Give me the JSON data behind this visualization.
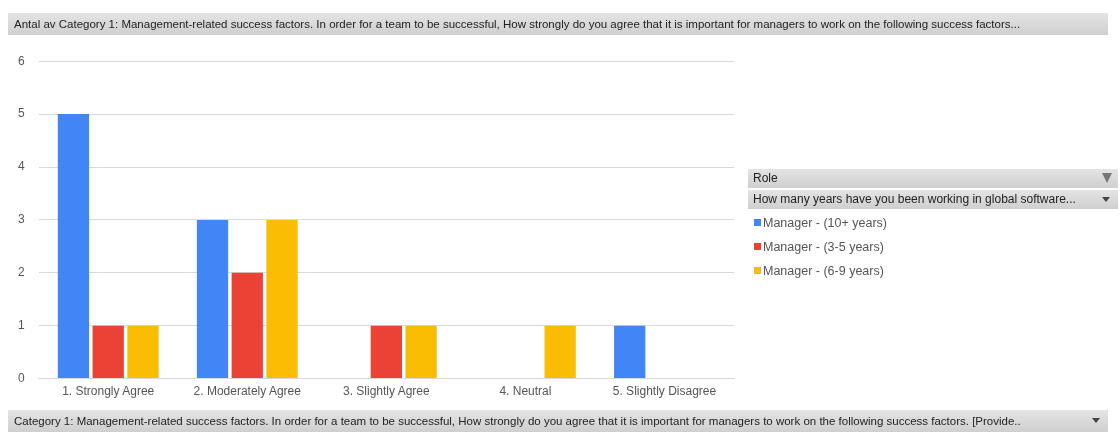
{
  "chart_data": {
    "type": "bar",
    "title": "Antal av Category 1: Management-related success factors. In order for a team to be successful, How strongly do you agree that it is important for managers to work on the following success factors...",
    "xlabel": "Category 1: Management-related success factors. In order for a team to be successful, How strongly do you agree that it is important for managers to work on the following success factors.  [Provide..",
    "legend_title": "Role",
    "annotations": [
      "How many years have you been working in global software..."
    ],
    "categories": [
      "1. Strongly Agree",
      "2. Moderately Agree",
      "3. Slightly Agree",
      "4. Neutral",
      "5. Slightly Disagree"
    ],
    "series": [
      {
        "name": "Manager - (10+ years)",
        "color": "#4285f4",
        "values": [
          5,
          3,
          null,
          null,
          1
        ]
      },
      {
        "name": "Manager - (3-5 years)",
        "color": "#ea4335",
        "values": [
          1,
          2,
          1,
          null,
          null
        ]
      },
      {
        "name": "Manager - (6-9 years)",
        "color": "#fbbc04",
        "values": [
          1,
          3,
          1,
          1,
          null
        ]
      }
    ],
    "ylim": [
      0,
      6
    ],
    "yticks": [
      0,
      1,
      2,
      3,
      4,
      5,
      6
    ],
    "grid": "y",
    "legend": "right"
  }
}
